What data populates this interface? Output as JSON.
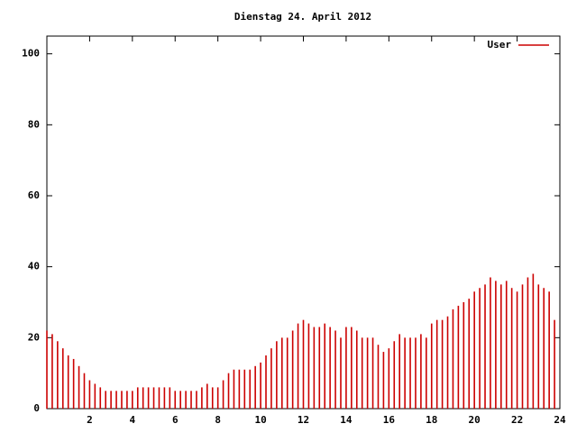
{
  "chart_data": {
    "type": "impulse",
    "title": "Dienstag 24. April 2012",
    "x": [
      0,
      0.25,
      0.5,
      0.75,
      1,
      1.25,
      1.5,
      1.75,
      2,
      2.25,
      2.5,
      2.75,
      3,
      3.25,
      3.5,
      3.75,
      4,
      4.25,
      4.5,
      4.75,
      5,
      5.25,
      5.5,
      5.75,
      6,
      6.25,
      6.5,
      6.75,
      7,
      7.25,
      7.5,
      7.75,
      8,
      8.25,
      8.5,
      8.75,
      9,
      9.25,
      9.5,
      9.75,
      10,
      10.25,
      10.5,
      10.75,
      11,
      11.25,
      11.5,
      11.75,
      12,
      12.25,
      12.5,
      12.75,
      13,
      13.25,
      13.5,
      13.75,
      14,
      14.25,
      14.5,
      14.75,
      15,
      15.25,
      15.5,
      15.75,
      16,
      16.25,
      16.5,
      16.75,
      17,
      17.25,
      17.5,
      17.75,
      18,
      18.25,
      18.5,
      18.75,
      19,
      19.25,
      19.5,
      19.75,
      20,
      20.25,
      20.5,
      20.75,
      21,
      21.25,
      21.5,
      21.75,
      22,
      22.25,
      22.5,
      22.75,
      23,
      23.25,
      23.5,
      23.75
    ],
    "series": [
      {
        "name": "User",
        "color": "#cc0000",
        "values": [
          22,
          21,
          19,
          17,
          15,
          14,
          12,
          10,
          8,
          7,
          6,
          5,
          5,
          5,
          5,
          5,
          5,
          6,
          6,
          6,
          6,
          6,
          6,
          6,
          5,
          5,
          5,
          5,
          5,
          6,
          7,
          6,
          6,
          8,
          10,
          11,
          11,
          11,
          11,
          12,
          13,
          15,
          17,
          19,
          20,
          20,
          22,
          24,
          25,
          24,
          23,
          23,
          24,
          23,
          22,
          20,
          23,
          23,
          22,
          20,
          20,
          20,
          18,
          16,
          17,
          19,
          21,
          20,
          20,
          20,
          21,
          20,
          24,
          25,
          25,
          26,
          28,
          29,
          30,
          31,
          33,
          34,
          35,
          37,
          36,
          35,
          36,
          34,
          33,
          35,
          37,
          38,
          35,
          34,
          33,
          25
        ]
      }
    ],
    "xlim": [
      0,
      24
    ],
    "ylim": [
      0,
      105
    ],
    "xticks": [
      2,
      4,
      6,
      8,
      10,
      12,
      14,
      16,
      18,
      20,
      22,
      24
    ],
    "yticks": [
      0,
      20,
      40,
      60,
      80,
      100
    ],
    "legend": "top-right"
  }
}
